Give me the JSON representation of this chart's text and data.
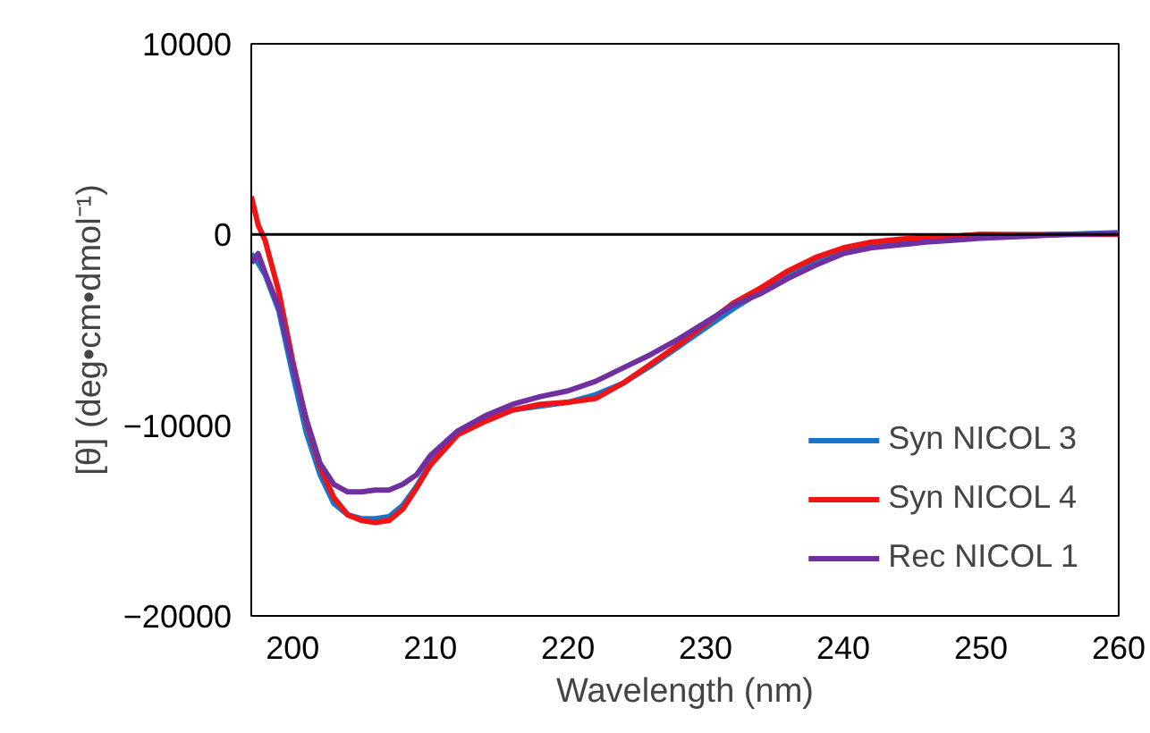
{
  "chart_data": {
    "type": "line",
    "xlabel": "Wavelength (nm)",
    "ylabel": "[θ] (deg•cm•dmol⁻¹)",
    "x": [
      197,
      197.5,
      198,
      199,
      200,
      201,
      202,
      203,
      204,
      205,
      206,
      207,
      208,
      209,
      210,
      212,
      214,
      216,
      218,
      220,
      222,
      224,
      226,
      228,
      230,
      232,
      234,
      236,
      238,
      240,
      242,
      244,
      246,
      248,
      250,
      253,
      256,
      260
    ],
    "series": [
      {
        "name": "Syn NICOL 3",
        "color": "#1a75c8",
        "values": [
          -1000,
          -1500,
          -2100,
          -4000,
          -7300,
          -10400,
          -12600,
          -14100,
          -14700,
          -14900,
          -14900,
          -14800,
          -14200,
          -13200,
          -12000,
          -10400,
          -9700,
          -9200,
          -9000,
          -8800,
          -8400,
          -7800,
          -6900,
          -5900,
          -4900,
          -3900,
          -3000,
          -2100,
          -1300,
          -800,
          -500,
          -300,
          -200,
          -100,
          0,
          0,
          0,
          100
        ]
      },
      {
        "name": "Syn NICOL 4",
        "color": "#f01414",
        "values": [
          2000,
          500,
          -300,
          -3000,
          -6600,
          -9800,
          -12200,
          -13800,
          -14700,
          -15000,
          -15100,
          -15000,
          -14400,
          -13300,
          -12100,
          -10500,
          -9800,
          -9200,
          -8900,
          -8800,
          -8600,
          -7800,
          -6800,
          -5800,
          -4700,
          -3600,
          -2800,
          -1900,
          -1200,
          -700,
          -400,
          -250,
          -150,
          -100,
          0,
          -50,
          0,
          0
        ]
      },
      {
        "name": "Rec NICOL 1",
        "color": "#7030a0",
        "values": [
          -1500,
          -1000,
          -2000,
          -3800,
          -6800,
          -9700,
          -12000,
          -13100,
          -13500,
          -13500,
          -13400,
          -13400,
          -13100,
          -12600,
          -11600,
          -10300,
          -9500,
          -8900,
          -8500,
          -8200,
          -7700,
          -7000,
          -6300,
          -5500,
          -4600,
          -3700,
          -3100,
          -2300,
          -1600,
          -1000,
          -700,
          -550,
          -400,
          -300,
          -200,
          -100,
          0,
          50
        ]
      }
    ],
    "xlim": [
      197,
      260
    ],
    "xticks": [
      200,
      210,
      220,
      230,
      240,
      250,
      260
    ],
    "ylim": [
      -20000,
      10000
    ],
    "yticks": [
      -20000,
      -10000,
      0,
      10000
    ],
    "ref_lines": [
      {
        "axis": "y",
        "value": 0,
        "color": "#000000"
      }
    ],
    "grid": false,
    "legend": "bottom right",
    "line_style": "solid"
  }
}
